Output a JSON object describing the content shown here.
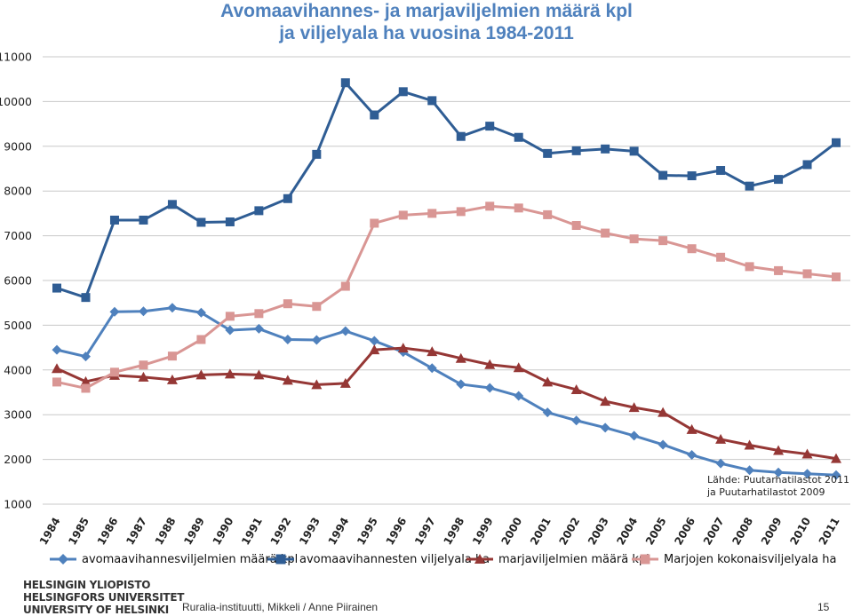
{
  "chart_data": {
    "type": "line",
    "title_lines": [
      "Avomaavihannes- ja marjaviljelmien määrä kpl",
      "ja viljelyala ha vuosina 1984-2011"
    ],
    "xlabel": "",
    "ylabel": "",
    "ylim": [
      1000,
      11000
    ],
    "yticks": [
      "1000",
      "2000",
      "3000",
      "4000",
      "5000",
      "6000",
      "7000",
      "8000",
      "9000",
      "10000",
      "11000"
    ],
    "ytick_values": [
      1000,
      2000,
      3000,
      4000,
      5000,
      6000,
      7000,
      8000,
      9000,
      10000,
      11000
    ],
    "grid": true,
    "legend_position": "bottom",
    "categories": [
      "1984",
      "1985",
      "1986",
      "1987",
      "1988",
      "1989",
      "1990",
      "1991",
      "1992",
      "1993",
      "1994",
      "1995",
      "1996",
      "1997",
      "1998",
      "1999",
      "2000",
      "2001",
      "2002",
      "2003",
      "2004",
      "2005",
      "2006",
      "2007",
      "2008",
      "2009",
      "2010",
      "2011"
    ],
    "series": [
      {
        "name": "avomaavihannesviljelmien määrä kpl",
        "color": "#4f81bd",
        "marker": "diamond",
        "values": [
          4450,
          4300,
          5300,
          5310,
          5390,
          5280,
          4890,
          4920,
          4680,
          4670,
          4870,
          4650,
          4400,
          4040,
          3680,
          3600,
          3420,
          3050,
          2870,
          2710,
          2530,
          2330,
          2100,
          1910,
          1760,
          1710,
          1680,
          1650
        ]
      },
      {
        "name": "avomaavihannesten viljelyala ha",
        "color": "#2f5d94",
        "marker": "square",
        "values": [
          5830,
          5620,
          7350,
          7350,
          7700,
          7300,
          7310,
          7560,
          7830,
          8820,
          10420,
          9700,
          10220,
          10020,
          9220,
          9450,
          9200,
          8840,
          8900,
          8940,
          8890,
          8350,
          8340,
          8460,
          8110,
          8260,
          8590,
          9080
        ]
      },
      {
        "name": "marjaviljelmien määrä kpl",
        "color": "#953735",
        "marker": "triangle",
        "values": [
          4030,
          3740,
          3880,
          3840,
          3780,
          3890,
          3910,
          3890,
          3770,
          3670,
          3700,
          4450,
          4490,
          4410,
          4260,
          4120,
          4050,
          3730,
          3560,
          3300,
          3160,
          3050,
          2670,
          2450,
          2320,
          2200,
          2120,
          2020
        ]
      },
      {
        "name": "Marjojen kokonaisviljelyala ha",
        "color": "#d99694",
        "marker": "square",
        "values": [
          3730,
          3590,
          3950,
          4110,
          4310,
          4680,
          5200,
          5260,
          5480,
          5420,
          5870,
          7280,
          7460,
          7500,
          7540,
          7660,
          7620,
          7470,
          7230,
          7060,
          6930,
          6890,
          6710,
          6520,
          6310,
          6220,
          6150,
          6080
        ]
      }
    ],
    "source_note": "Lähde: Puutarhatilastot 2011 ja Puutarhatilastot 2009"
  },
  "footer": {
    "logo_lines": [
      "HELSINGIN YLIOPISTO",
      "HELSINGFORS UNIVERSITET",
      "UNIVERSITY OF HELSINKI"
    ],
    "text": "Ruralia-instituutti, Mikkeli / Anne Piirainen",
    "page_number": "15"
  }
}
